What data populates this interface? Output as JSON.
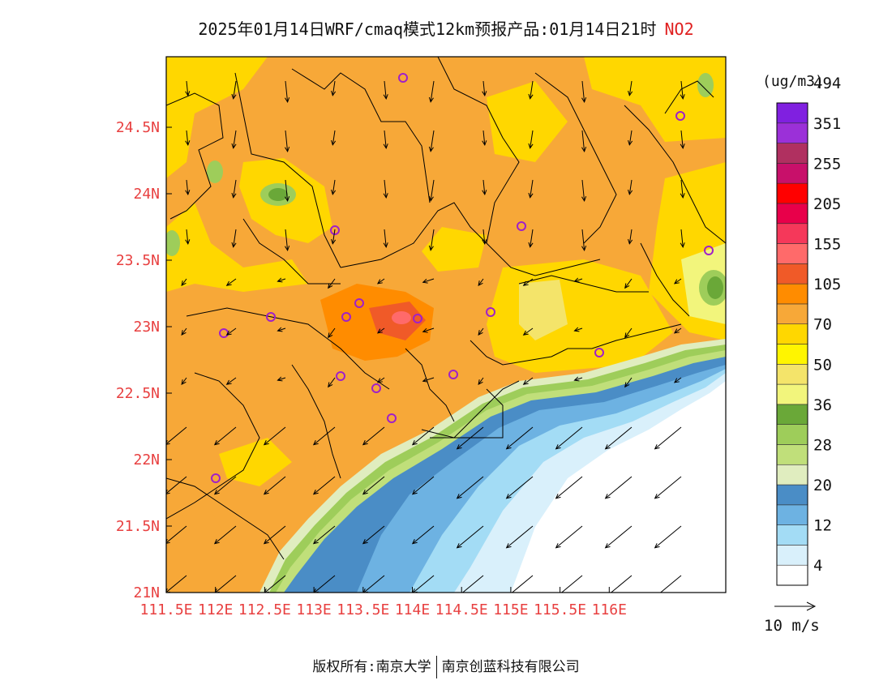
{
  "title": {
    "main": "2025年01月14日WRF/cmaq模式12km预报产品:01月14日21时",
    "species": "NO2"
  },
  "colorbar": {
    "unit": "(ug/m3)",
    "colors": [
      "#ffffff",
      "#d9f0fb",
      "#a3dcf5",
      "#6db2e2",
      "#4a8dc6",
      "#e0edbf",
      "#c0df7a",
      "#9ecd5a",
      "#6aa838",
      "#f2f57c",
      "#f4e46a",
      "#fff500",
      "#ffd700",
      "#f7a838",
      "#ff8c00",
      "#f05a28",
      "#ff6a6a",
      "#f5385a",
      "#e8004a",
      "#ff0000",
      "#c8106a",
      "#b03060",
      "#9b30d8",
      "#8020e0"
    ],
    "labels": [
      "4",
      "12",
      "20",
      "28",
      "36",
      "50",
      "70",
      "105",
      "155",
      "205",
      "255",
      "351",
      "494"
    ]
  },
  "map": {
    "x_ticks": [
      "111.5E",
      "112E",
      "112.5E",
      "113E",
      "113.5E",
      "114E",
      "114.5E",
      "115E",
      "115.5E",
      "116E"
    ],
    "y_ticks": [
      "21N",
      "21.5N",
      "22N",
      "22.5N",
      "23N",
      "23.5N",
      "24N",
      "24.5N"
    ]
  },
  "wind_reference": {
    "label": "10 m/s"
  },
  "footer": {
    "copyright": "版权所有:南京大学",
    "company": "南京创蓝科技有限公司"
  }
}
